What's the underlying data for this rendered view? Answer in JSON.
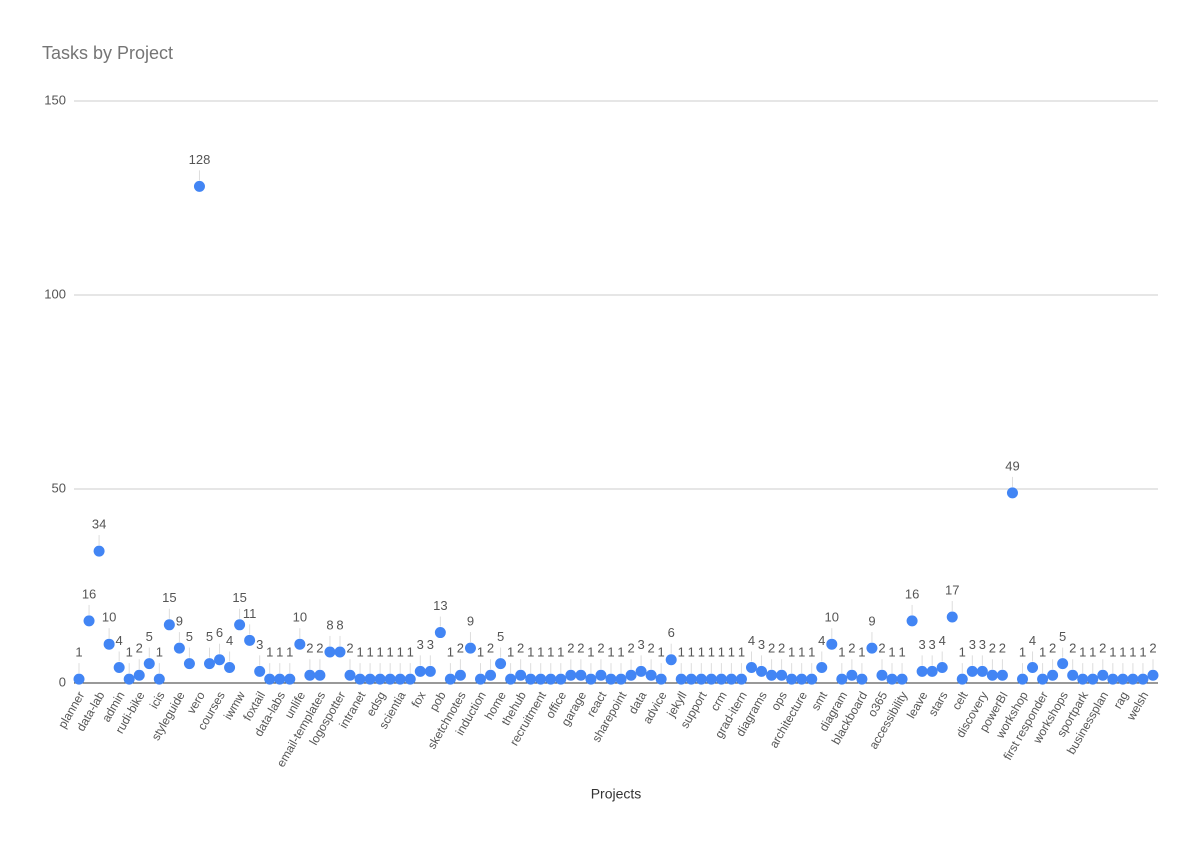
{
  "chart_data": {
    "type": "scatter",
    "title": "Tasks by Project",
    "x_label": "Projects",
    "categories": [
      "planner",
      null,
      "data-lab",
      null,
      "admin",
      null,
      "rudi-bike",
      null,
      "icis",
      null,
      "styleguide",
      null,
      "vero",
      null,
      "courses",
      null,
      "iwmw",
      null,
      "foxtail",
      null,
      "data-labs",
      null,
      "unlife",
      null,
      "email-templates",
      null,
      "logospotter",
      null,
      "intranet",
      null,
      "edsg",
      null,
      "scientia",
      null,
      "fox",
      null,
      "pob",
      null,
      "sketchnotes",
      null,
      "induction",
      null,
      "home",
      null,
      "thehub",
      null,
      "recruitment",
      null,
      "office",
      null,
      "garage",
      null,
      "react",
      null,
      "sharepoint",
      null,
      "data",
      null,
      "advice",
      null,
      "jekyll",
      null,
      "support",
      null,
      "crm",
      null,
      "grad-itern",
      null,
      "diagrams",
      null,
      "ops",
      null,
      "architecture",
      null,
      "smt",
      null,
      "diagram",
      null,
      "blackboard",
      null,
      "o365",
      null,
      "accessibility",
      null,
      "leave",
      null,
      "stars",
      null,
      "celt",
      null,
      "discovery",
      null,
      "powerBI",
      null,
      "workshop",
      null,
      "first responder",
      null,
      "workshops",
      null,
      "sportpark",
      null,
      "businessplan",
      null,
      "rag",
      null,
      "welsh",
      null
    ],
    "values": [
      1,
      16,
      34,
      10,
      4,
      1,
      2,
      5,
      1,
      15,
      9,
      5,
      128,
      5,
      6,
      4,
      15,
      11,
      3,
      1,
      1,
      1,
      10,
      2,
      2,
      8,
      8,
      2,
      1,
      1,
      1,
      1,
      1,
      1,
      3,
      3,
      13,
      1,
      2,
      9,
      1,
      2,
      5,
      1,
      2,
      1,
      1,
      1,
      1,
      2,
      2,
      1,
      2,
      1,
      1,
      2,
      3,
      2,
      1,
      6,
      1,
      1,
      1,
      1,
      1,
      1,
      1,
      4,
      3,
      2,
      2,
      1,
      1,
      1,
      4,
      10,
      1,
      2,
      1,
      9,
      2,
      1,
      1,
      16,
      3,
      3,
      4,
      17,
      1,
      3,
      3,
      2,
      2,
      49,
      1,
      4,
      1,
      2,
      5,
      2,
      1,
      1,
      2,
      1,
      1,
      1,
      1,
      2
    ],
    "color": "#4285f4",
    "ylim": [
      0,
      150
    ],
    "yticks": [
      0,
      50,
      100,
      150
    ],
    "grid": true,
    "data_labels": true
  }
}
